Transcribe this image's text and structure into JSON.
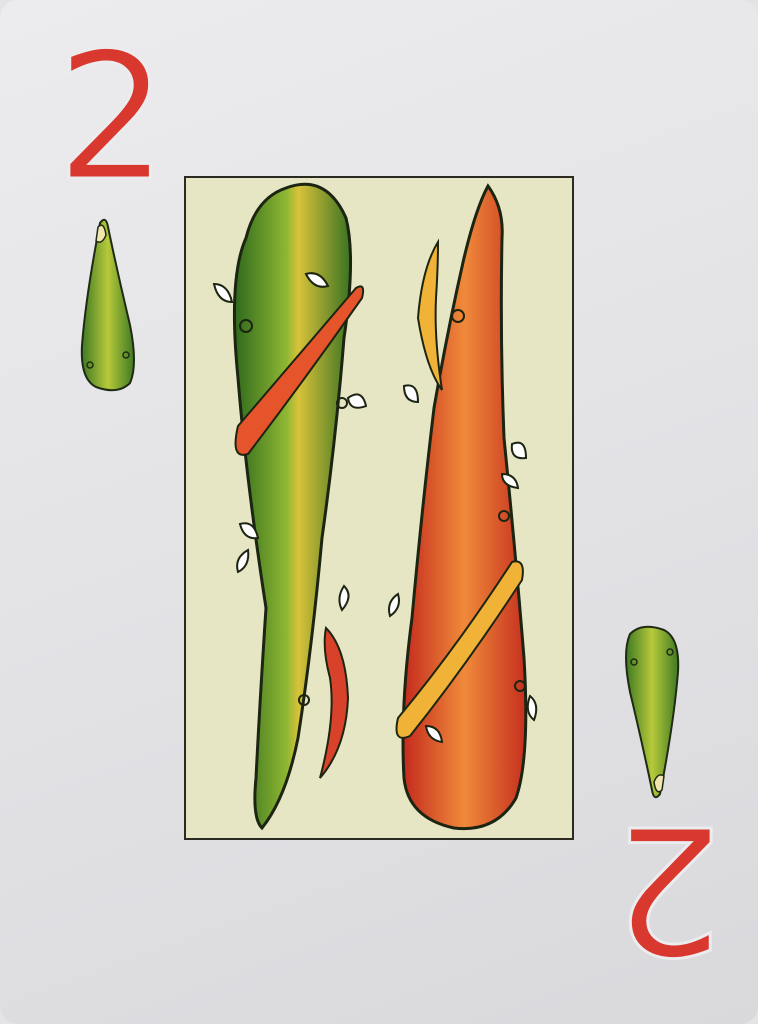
{
  "card": {
    "rank_top": "2",
    "rank_bottom": "2",
    "suit_icon": "club-baton-icon",
    "rank_color": "#d9382e",
    "panel_color": "#e6e6c4",
    "green_club_color": "#4f8a2c",
    "red_club_color": "#d8412a",
    "band_colors": [
      "#e5542a",
      "#f0b338"
    ]
  }
}
